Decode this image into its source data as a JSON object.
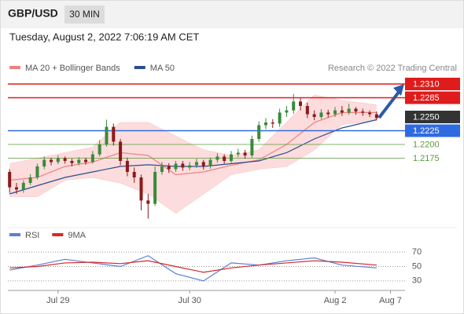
{
  "header": {
    "symbol": "GBP/USD",
    "timeframe": "30 MIN",
    "datetime": "Tuesday, August 2, 2022 7:06:19 AM CET"
  },
  "chart_data": [
    {
      "type": "candlestick",
      "credit": "Research © 2022 Trading Central",
      "up_color": "#3a8a3a",
      "down_color": "#8b1a1a",
      "open": [
        1.215,
        1.2122,
        1.2118,
        1.213,
        1.214,
        1.216,
        1.2172,
        1.2168,
        1.2175,
        1.217,
        1.2166,
        1.2172,
        1.2168,
        1.2182,
        1.22,
        1.2232,
        1.2205,
        1.217,
        1.215,
        1.214,
        1.2098,
        1.2092,
        1.215,
        1.216,
        1.2155,
        1.2165,
        1.2158,
        1.2162,
        1.2168,
        1.216,
        1.2172,
        1.2178,
        1.217,
        1.2182,
        1.2185,
        1.218,
        1.221,
        1.2235,
        1.224,
        1.2238,
        1.2258,
        1.2262,
        1.2278,
        1.227,
        1.2255,
        1.225,
        1.2258,
        1.2255,
        1.2262,
        1.2258,
        1.2265,
        1.226,
        1.2258,
        1.2255
      ],
      "high": [
        1.2155,
        1.213,
        1.2135,
        1.2146,
        1.2165,
        1.2178,
        1.2176,
        1.218,
        1.2178,
        1.2174,
        1.2177,
        1.2176,
        1.2188,
        1.2208,
        1.2245,
        1.2238,
        1.221,
        1.2176,
        1.2158,
        1.2145,
        1.211,
        1.216,
        1.2168,
        1.2166,
        1.217,
        1.217,
        1.2168,
        1.2174,
        1.2172,
        1.2176,
        1.2184,
        1.2182,
        1.2188,
        1.2192,
        1.219,
        1.2216,
        1.2242,
        1.2248,
        1.2246,
        1.2265,
        1.227,
        1.2292,
        1.2284,
        1.2276,
        1.2262,
        1.2264,
        1.2263,
        1.2268,
        1.227,
        1.2274,
        1.2268,
        1.2265,
        1.2262,
        1.226
      ],
      "low": [
        1.2112,
        1.211,
        1.2112,
        1.2126,
        1.2136,
        1.2155,
        1.2162,
        1.2164,
        1.2165,
        1.216,
        1.2162,
        1.2163,
        1.2165,
        1.2178,
        1.2196,
        1.2198,
        1.2162,
        1.2142,
        1.213,
        1.208,
        1.2065,
        1.2088,
        1.2145,
        1.2148,
        1.215,
        1.2152,
        1.2153,
        1.2157,
        1.2154,
        1.2156,
        1.2167,
        1.2165,
        1.2166,
        1.2177,
        1.2174,
        1.2176,
        1.2205,
        1.2228,
        1.223,
        1.2232,
        1.225,
        1.2256,
        1.2262,
        1.2248,
        1.2244,
        1.2246,
        1.2249,
        1.225,
        1.2252,
        1.2254,
        1.2254,
        1.2252,
        1.225,
        1.2244
      ],
      "close": [
        1.2122,
        1.2118,
        1.213,
        1.214,
        1.216,
        1.2172,
        1.2168,
        1.2175,
        1.217,
        1.2166,
        1.2172,
        1.2168,
        1.2182,
        1.22,
        1.2232,
        1.2205,
        1.217,
        1.215,
        1.214,
        1.2098,
        1.2092,
        1.215,
        1.216,
        1.2155,
        1.2165,
        1.2158,
        1.2162,
        1.2168,
        1.216,
        1.2172,
        1.2178,
        1.217,
        1.2182,
        1.2185,
        1.218,
        1.221,
        1.2235,
        1.224,
        1.2238,
        1.2258,
        1.2262,
        1.2278,
        1.227,
        1.2255,
        1.225,
        1.2258,
        1.2255,
        1.2262,
        1.2258,
        1.2265,
        1.226,
        1.2258,
        1.2255,
        1.2248
      ],
      "series": [
        {
          "name": "MA 20 + Bollinger Bands",
          "color": "#f08080",
          "band_color": "#fbd3d3",
          "x": [
            0,
            4,
            8,
            12,
            16,
            20,
            24,
            28,
            32,
            36,
            40,
            44,
            48,
            53
          ],
          "values": [
            1.2135,
            1.214,
            1.216,
            1.2168,
            1.2185,
            1.218,
            1.2145,
            1.215,
            1.2162,
            1.2172,
            1.22,
            1.224,
            1.2258,
            1.2258
          ],
          "upper": [
            1.2165,
            1.2175,
            1.2185,
            1.2195,
            1.224,
            1.224,
            1.2215,
            1.219,
            1.218,
            1.219,
            1.224,
            1.229,
            1.228,
            1.2272
          ],
          "lower": [
            1.2105,
            1.2105,
            1.2135,
            1.214,
            1.213,
            1.211,
            1.2075,
            1.211,
            1.2145,
            1.2155,
            1.216,
            1.219,
            1.2236,
            1.2244
          ]
        },
        {
          "name": "MA 50",
          "color": "#2a4d8f",
          "x": [
            0,
            4,
            8,
            12,
            16,
            20,
            24,
            28,
            32,
            36,
            40,
            44,
            48,
            53
          ],
          "values": [
            1.211,
            1.2125,
            1.214,
            1.215,
            1.216,
            1.2163,
            1.216,
            1.216,
            1.2165,
            1.217,
            1.2185,
            1.221,
            1.223,
            1.2245
          ]
        }
      ],
      "levels": [
        {
          "value": 1.231,
          "label": "1.2310",
          "color": "#e01b1b",
          "box": true,
          "line": true
        },
        {
          "value": 1.2285,
          "label": "1.2285",
          "color": "#e01b1b",
          "box": true,
          "line": true
        },
        {
          "value": 1.225,
          "label": "1.2250",
          "color": "#333333",
          "box": true,
          "line": false
        },
        {
          "value": 1.2225,
          "label": "1.2225",
          "color": "#2f6be0",
          "box": true,
          "line": true
        },
        {
          "value": 1.22,
          "label": "1.2200",
          "color": "#5a9a3a",
          "box": false,
          "line": true
        },
        {
          "value": 1.2175,
          "label": "1.2175",
          "color": "#5a9a3a",
          "box": false,
          "line": true
        }
      ],
      "ylim": [
        1.206,
        1.232
      ],
      "xlim": [
        -0.25,
        57.1
      ],
      "xticks": [
        {
          "value": 7,
          "label": "Jul 29"
        },
        {
          "value": 26,
          "label": "Jul 30"
        },
        {
          "value": 47,
          "label": "Aug 2"
        },
        {
          "value": 55,
          "label": "Aug 7"
        }
      ]
    },
    {
      "type": "line",
      "grid": true,
      "series": [
        {
          "name": "RSI",
          "color": "#5b7fd6",
          "x": [
            0,
            4,
            8,
            12,
            16,
            20,
            24,
            28,
            32,
            36,
            40,
            44,
            48,
            53
          ],
          "values": [
            45,
            52,
            60,
            55,
            50,
            65,
            40,
            30,
            55,
            52,
            58,
            62,
            52,
            48
          ]
        },
        {
          "name": "9MA",
          "color": "#d62828",
          "x": [
            0,
            4,
            8,
            12,
            16,
            20,
            24,
            28,
            32,
            36,
            40,
            44,
            48,
            53
          ],
          "values": [
            48,
            50,
            55,
            56,
            54,
            58,
            50,
            42,
            48,
            52,
            55,
            58,
            56,
            52
          ]
        }
      ],
      "ylim": [
        20,
        80
      ],
      "yticks": [
        70,
        50,
        30
      ]
    }
  ]
}
